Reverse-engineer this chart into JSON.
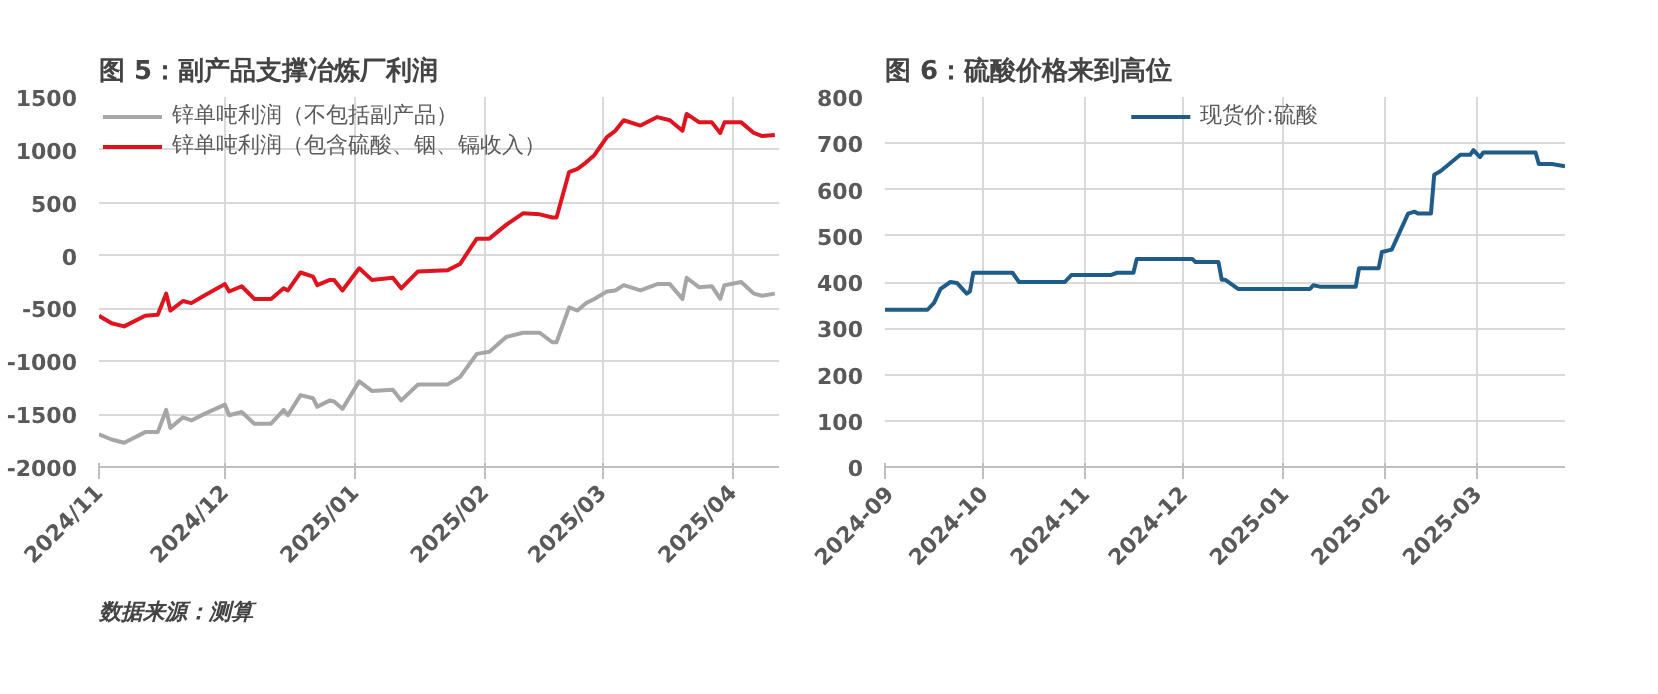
{
  "chart_data": [
    {
      "type": "line",
      "title": "图 5：副产品支撑冶炼厂利润",
      "x": [
        "2024-11-01",
        "2024-11-04",
        "2024-11-07",
        "2024-11-12",
        "2024-11-15",
        "2024-11-17",
        "2024-11-18",
        "2024-11-21",
        "2024-11-23",
        "2024-11-26",
        "2024-12-01",
        "2024-12-02",
        "2024-12-05",
        "2024-12-08",
        "2024-12-12",
        "2024-12-15",
        "2024-12-16",
        "2024-12-19",
        "2024-12-22",
        "2024-12-23",
        "2024-12-26",
        "2024-12-27",
        "2024-12-29",
        "2025-01-02",
        "2025-01-05",
        "2025-01-10",
        "2025-01-12",
        "2025-01-16",
        "2025-01-23",
        "2025-01-26",
        "2025-01-30",
        "2025-02-02",
        "2025-02-06",
        "2025-02-10",
        "2025-02-14",
        "2025-02-17",
        "2025-02-18",
        "2025-02-21",
        "2025-02-23",
        "2025-02-25",
        "2025-02-27",
        "2025-03-02",
        "2025-03-04",
        "2025-03-06",
        "2025-03-10",
        "2025-03-14",
        "2025-03-17",
        "2025-03-20",
        "2025-03-21",
        "2025-03-24",
        "2025-03-27",
        "2025-03-29",
        "2025-03-30",
        "2025-04-03",
        "2025-04-06",
        "2025-04-08",
        "2025-04-11"
      ],
      "series": [
        {
          "name": "锌单吨利润（不包括副产品）",
          "color": "#a6a6a6",
          "values": [
            -1690,
            -1740,
            -1770,
            -1670,
            -1670,
            -1460,
            -1630,
            -1530,
            -1560,
            -1500,
            -1410,
            -1510,
            -1480,
            -1590,
            -1590,
            -1460,
            -1510,
            -1320,
            -1350,
            -1430,
            -1370,
            -1380,
            -1450,
            -1190,
            -1280,
            -1270,
            -1370,
            -1220,
            -1220,
            -1150,
            -930,
            -910,
            -770,
            -730,
            -730,
            -820,
            -820,
            -490,
            -520,
            -450,
            -410,
            -340,
            -330,
            -280,
            -330,
            -270,
            -270,
            -410,
            -210,
            -300,
            -290,
            -410,
            -280,
            -250,
            -360,
            -380,
            -360
          ]
        },
        {
          "name": "锌单吨利润（包含硫酸、铟、镉收入）",
          "color": "#e0141e",
          "values": [
            -570,
            -640,
            -670,
            -570,
            -560,
            -360,
            -520,
            -430,
            -450,
            -380,
            -270,
            -340,
            -290,
            -410,
            -410,
            -310,
            -330,
            -160,
            -200,
            -280,
            -230,
            -230,
            -330,
            -120,
            -230,
            -210,
            -310,
            -150,
            -140,
            -80,
            160,
            160,
            290,
            400,
            390,
            360,
            360,
            790,
            820,
            880,
            950,
            1120,
            1180,
            1280,
            1230,
            1310,
            1280,
            1180,
            1340,
            1260,
            1260,
            1160,
            1260,
            1260,
            1160,
            1130,
            1140
          ]
        }
      ],
      "xlim": [
        "2024-11-01",
        "2025-04-12"
      ],
      "xticks": [
        {
          "value": "2024-11-01",
          "label": "2024/11"
        },
        {
          "value": "2024-12-01",
          "label": "2024/12"
        },
        {
          "value": "2025-01-01",
          "label": "2025/01"
        },
        {
          "value": "2025-02-01",
          "label": "2025/02"
        },
        {
          "value": "2025-03-01",
          "label": "2025/03"
        },
        {
          "value": "2025-04-01",
          "label": "2025/04"
        }
      ],
      "ylim": [
        -2000,
        1500
      ],
      "yticks": [
        -2000,
        -1500,
        -1000,
        -500,
        0,
        500,
        1000,
        1500
      ],
      "grid": true,
      "legend": "top left",
      "annotations": [
        "数据来源：测算"
      ]
    },
    {
      "type": "line",
      "title": "图 6：硫酸价格来到高位",
      "x": [
        "2024-09-01",
        "2024-09-14",
        "2024-09-16",
        "2024-09-18",
        "2024-09-21",
        "2024-09-23",
        "2024-09-26",
        "2024-09-27",
        "2024-09-28",
        "2024-10-10",
        "2024-10-12",
        "2024-10-26",
        "2024-10-28",
        "2024-11-09",
        "2024-11-11",
        "2024-11-16",
        "2024-11-17",
        "2024-12-04",
        "2024-12-05",
        "2024-12-12",
        "2024-12-13",
        "2024-12-14",
        "2024-12-18",
        "2025-01-09",
        "2025-01-10",
        "2025-01-12",
        "2025-01-23",
        "2025-01-24",
        "2025-01-30",
        "2025-01-31",
        "2025-02-03",
        "2025-02-08",
        "2025-02-10",
        "2025-02-11",
        "2025-02-15",
        "2025-02-16",
        "2025-02-18",
        "2025-02-24",
        "2025-02-27",
        "2025-02-28",
        "2025-03-02",
        "2025-03-03",
        "2025-03-19",
        "2025-03-20",
        "2025-03-24",
        "2025-03-28"
      ],
      "series": [
        {
          "name": "现货价:硫酸",
          "color": "#1f5c87",
          "values": [
            340,
            340,
            355,
            385,
            400,
            398,
            375,
            380,
            420,
            420,
            400,
            400,
            415,
            415,
            420,
            420,
            450,
            450,
            443,
            443,
            405,
            405,
            385,
            385,
            393,
            390,
            390,
            430,
            430,
            465,
            470,
            548,
            552,
            548,
            548,
            632,
            640,
            675,
            675,
            685,
            670,
            680,
            680,
            655,
            655,
            650
          ]
        }
      ],
      "xlim": [
        "2024-09-01",
        "2025-03-28"
      ],
      "xticks": [
        {
          "value": "2024-09-01",
          "label": "2024-09"
        },
        {
          "value": "2024-10-01",
          "label": "2024-10"
        },
        {
          "value": "2024-11-01",
          "label": "2024-11"
        },
        {
          "value": "2024-12-01",
          "label": "2024-12"
        },
        {
          "value": "2025-01-01",
          "label": "2025-01"
        },
        {
          "value": "2025-02-01",
          "label": "2025-02"
        },
        {
          "value": "2025-03-01",
          "label": "2025-03"
        }
      ],
      "ylim": [
        0,
        800
      ],
      "yticks": [
        0,
        100,
        200,
        300,
        400,
        500,
        600,
        700,
        800
      ],
      "grid": true,
      "legend": "top"
    }
  ]
}
